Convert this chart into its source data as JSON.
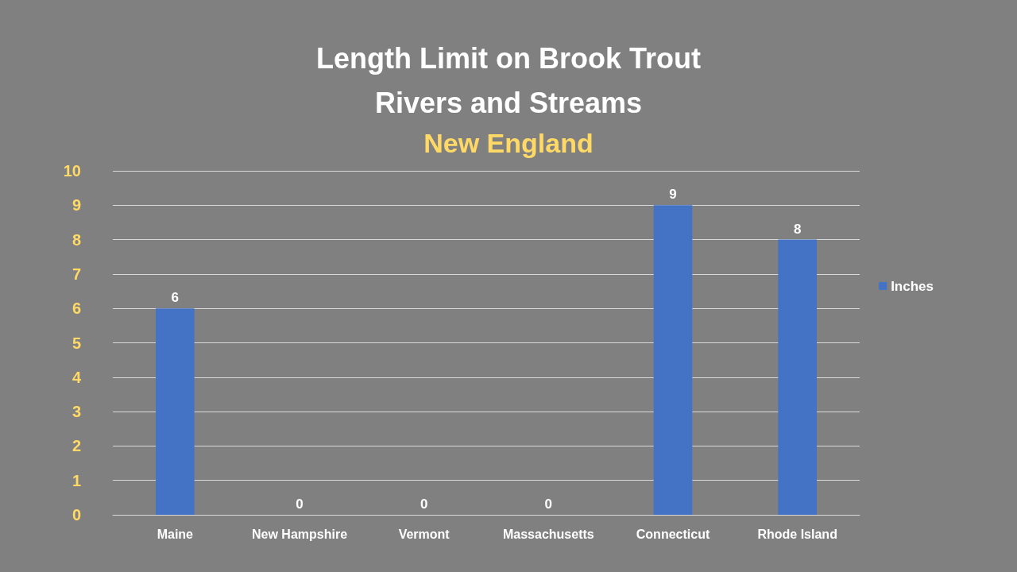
{
  "chart_data": {
    "type": "bar",
    "title": "Length Limit on Brook Trout\nRivers and Streams",
    "subtitle": "New England",
    "categories": [
      "Maine",
      "New Hampshire",
      "Vermont",
      "Massachusetts",
      "Connecticut",
      "Rhode Island"
    ],
    "series": [
      {
        "name": "Inches",
        "color": "#4472c4",
        "values": [
          6,
          0,
          0,
          0,
          9,
          8
        ]
      }
    ],
    "ylim": [
      0,
      10
    ],
    "yticks": [
      0,
      1,
      2,
      3,
      4,
      5,
      6,
      7,
      8,
      9,
      10
    ],
    "grid": "y",
    "legend": "right",
    "data_labels": true
  }
}
